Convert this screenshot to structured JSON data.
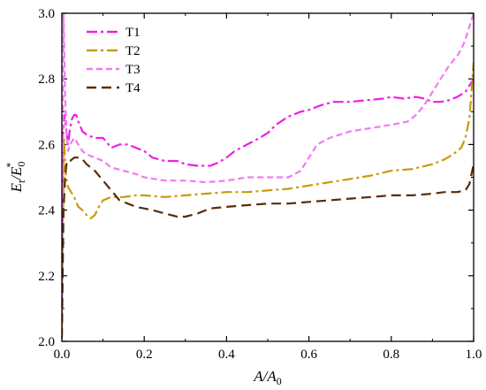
{
  "chart_data": {
    "type": "line",
    "title": "",
    "xlabel": {
      "main": "A/A",
      "sub": "0"
    },
    "ylabel": {
      "main": "E/E",
      "sub1": "t",
      "sub2": "0",
      "sup": "*"
    },
    "xlim": [
      0.0,
      1.0
    ],
    "ylim": [
      2.0,
      3.0
    ],
    "xticks": [
      0.0,
      0.2,
      0.4,
      0.6,
      0.8,
      1.0
    ],
    "xtick_labels": [
      "0.0",
      "0.2",
      "0.4",
      "0.6",
      "0.8",
      "1.0"
    ],
    "yticks": [
      2.0,
      2.2,
      2.4,
      2.6,
      2.8,
      3.0
    ],
    "ytick_labels": [
      "2.0",
      "2.2",
      "2.4",
      "2.6",
      "2.8",
      "3.0"
    ],
    "grid": false,
    "legend_position": "top-left",
    "series": [
      {
        "name": "T1",
        "color": "#ee1ee6",
        "dash": "dash-dot",
        "x": [
          0.0,
          0.003,
          0.006,
          0.01,
          0.015,
          0.02,
          0.025,
          0.03,
          0.035,
          0.04,
          0.05,
          0.06,
          0.08,
          0.1,
          0.12,
          0.14,
          0.16,
          0.18,
          0.2,
          0.22,
          0.25,
          0.28,
          0.3,
          0.33,
          0.36,
          0.38,
          0.4,
          0.42,
          0.45,
          0.48,
          0.5,
          0.52,
          0.55,
          0.58,
          0.6,
          0.63,
          0.66,
          0.7,
          0.74,
          0.78,
          0.8,
          0.83,
          0.86,
          0.88,
          0.9,
          0.92,
          0.94,
          0.96,
          0.98,
          0.99,
          1.0
        ],
        "y": [
          2.05,
          2.63,
          2.69,
          2.65,
          2.6,
          2.65,
          2.68,
          2.69,
          2.69,
          2.67,
          2.64,
          2.63,
          2.62,
          2.62,
          2.59,
          2.6,
          2.6,
          2.59,
          2.58,
          2.56,
          2.55,
          2.55,
          2.54,
          2.535,
          2.535,
          2.545,
          2.56,
          2.58,
          2.6,
          2.62,
          2.635,
          2.66,
          2.685,
          2.7,
          2.705,
          2.72,
          2.73,
          2.73,
          2.735,
          2.74,
          2.745,
          2.74,
          2.745,
          2.74,
          2.73,
          2.73,
          2.735,
          2.745,
          2.76,
          2.78,
          2.8
        ]
      },
      {
        "name": "T2",
        "color": "#c89a0a",
        "dash": "dash-dot",
        "x": [
          0.0,
          0.005,
          0.01,
          0.015,
          0.02,
          0.03,
          0.04,
          0.05,
          0.06,
          0.07,
          0.08,
          0.09,
          0.1,
          0.12,
          0.15,
          0.18,
          0.2,
          0.25,
          0.3,
          0.35,
          0.4,
          0.45,
          0.5,
          0.55,
          0.6,
          0.65,
          0.7,
          0.75,
          0.8,
          0.85,
          0.9,
          0.93,
          0.95,
          0.97,
          0.98,
          0.99,
          1.0
        ],
        "y": [
          2.02,
          2.62,
          2.5,
          2.47,
          2.46,
          2.44,
          2.41,
          2.4,
          2.385,
          2.375,
          2.385,
          2.41,
          2.43,
          2.44,
          2.44,
          2.445,
          2.445,
          2.44,
          2.445,
          2.45,
          2.455,
          2.455,
          2.46,
          2.465,
          2.475,
          2.485,
          2.495,
          2.505,
          2.52,
          2.525,
          2.54,
          2.555,
          2.57,
          2.59,
          2.62,
          2.68,
          2.85
        ]
      },
      {
        "name": "T3",
        "color": "#f27af2",
        "dash": "dash",
        "x": [
          0.0,
          0.004,
          0.008,
          0.012,
          0.015,
          0.02,
          0.03,
          0.04,
          0.05,
          0.06,
          0.08,
          0.1,
          0.12,
          0.15,
          0.18,
          0.2,
          0.25,
          0.3,
          0.35,
          0.4,
          0.45,
          0.5,
          0.55,
          0.58,
          0.6,
          0.62,
          0.65,
          0.7,
          0.75,
          0.8,
          0.82,
          0.84,
          0.86,
          0.88,
          0.9,
          0.92,
          0.94,
          0.96,
          0.97,
          0.98,
          0.99,
          1.0
        ],
        "y": [
          2.05,
          3.0,
          2.75,
          2.62,
          2.58,
          2.6,
          2.62,
          2.6,
          2.58,
          2.57,
          2.56,
          2.55,
          2.53,
          2.52,
          2.51,
          2.5,
          2.49,
          2.49,
          2.485,
          2.49,
          2.5,
          2.5,
          2.5,
          2.52,
          2.56,
          2.6,
          2.62,
          2.64,
          2.65,
          2.66,
          2.665,
          2.67,
          2.69,
          2.72,
          2.76,
          2.8,
          2.84,
          2.87,
          2.89,
          2.92,
          2.96,
          3.0
        ]
      },
      {
        "name": "T4",
        "color": "#5a2c08",
        "dash": "long-dash",
        "x": [
          0.0,
          0.004,
          0.008,
          0.012,
          0.02,
          0.03,
          0.04,
          0.05,
          0.06,
          0.08,
          0.1,
          0.12,
          0.14,
          0.16,
          0.18,
          0.2,
          0.22,
          0.25,
          0.28,
          0.3,
          0.33,
          0.36,
          0.4,
          0.45,
          0.5,
          0.55,
          0.6,
          0.65,
          0.7,
          0.75,
          0.8,
          0.85,
          0.9,
          0.93,
          0.96,
          0.98,
          0.99,
          1.0
        ],
        "y": [
          2.01,
          2.4,
          2.5,
          2.55,
          2.55,
          2.56,
          2.56,
          2.555,
          2.54,
          2.52,
          2.49,
          2.46,
          2.43,
          2.42,
          2.41,
          2.405,
          2.4,
          2.39,
          2.38,
          2.38,
          2.39,
          2.405,
          2.41,
          2.415,
          2.42,
          2.42,
          2.425,
          2.43,
          2.435,
          2.44,
          2.445,
          2.445,
          2.45,
          2.455,
          2.455,
          2.46,
          2.48,
          2.54
        ]
      }
    ]
  }
}
